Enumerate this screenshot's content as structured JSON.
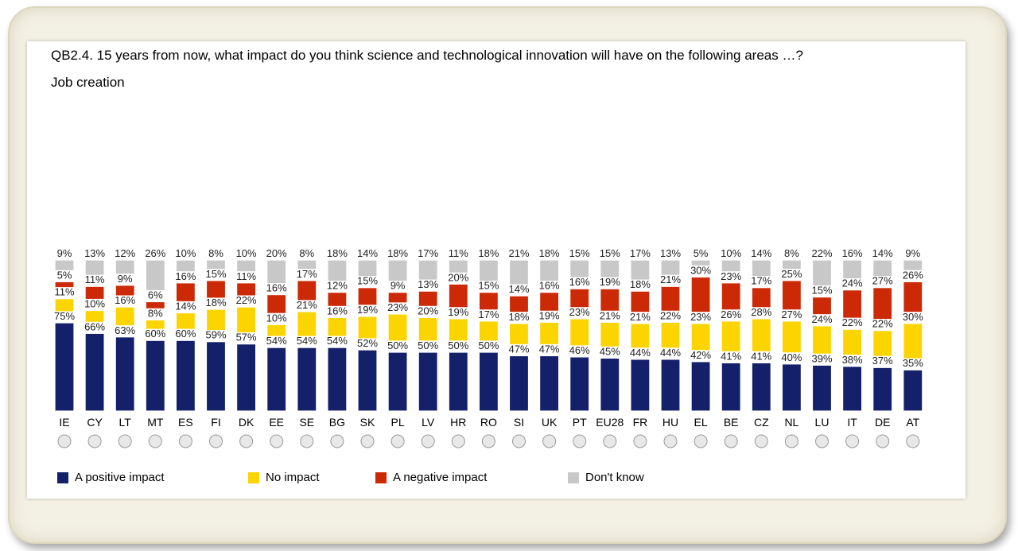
{
  "question": "QB2.4. 15 years from now, what impact do you think science and technological innovation will have on the following areas …?",
  "subtitle": "Job creation",
  "colors": {
    "positive": "#142069",
    "none": "#fcd400",
    "negative": "#cc2a06",
    "dont_know": "#c8c8c8"
  },
  "legend": [
    {
      "key": "positive",
      "label": "A positive impact",
      "color": "#142069"
    },
    {
      "key": "none",
      "label": "No impact",
      "color": "#fcd400"
    },
    {
      "key": "negative",
      "label": "A negative impact",
      "color": "#cc2a06"
    },
    {
      "key": "dont_know",
      "label": "Don't know",
      "color": "#c8c8c8"
    }
  ],
  "chart_data": {
    "type": "bar",
    "stacked": true,
    "percent_suffix": "%",
    "categories": [
      "IE",
      "CY",
      "LT",
      "MT",
      "ES",
      "FI",
      "DK",
      "EE",
      "SE",
      "BG",
      "SK",
      "PL",
      "LV",
      "HR",
      "RO",
      "SI",
      "UK",
      "PT",
      "EU28",
      "FR",
      "HU",
      "EL",
      "BE",
      "CZ",
      "NL",
      "LU",
      "IT",
      "DE",
      "AT"
    ],
    "flag_icons": [
      "ireland-flag-icon",
      "cyprus-flag-icon",
      "lithuania-flag-icon",
      "malta-flag-icon",
      "spain-flag-icon",
      "finland-flag-icon",
      "denmark-flag-icon",
      "estonia-flag-icon",
      "sweden-flag-icon",
      "bulgaria-flag-icon",
      "slovakia-flag-icon",
      "poland-flag-icon",
      "latvia-flag-icon",
      "croatia-flag-icon",
      "romania-flag-icon",
      "slovenia-flag-icon",
      "uk-flag-icon",
      "portugal-flag-icon",
      "eu-flag-icon",
      "france-flag-icon",
      "hungary-flag-icon",
      "greece-flag-icon",
      "belgium-flag-icon",
      "czechia-flag-icon",
      "netherlands-flag-icon",
      "luxembourg-flag-icon",
      "italy-flag-icon",
      "germany-flag-icon",
      "austria-flag-icon"
    ],
    "series": [
      {
        "name": "A positive impact",
        "key": "positive",
        "values": [
          75,
          66,
          63,
          60,
          60,
          59,
          57,
          54,
          54,
          54,
          52,
          50,
          50,
          50,
          50,
          47,
          47,
          46,
          45,
          44,
          44,
          42,
          41,
          41,
          40,
          39,
          38,
          37,
          35
        ]
      },
      {
        "name": "No impact",
        "key": "none",
        "values": [
          11,
          10,
          16,
          8,
          14,
          18,
          22,
          10,
          21,
          16,
          19,
          23,
          20,
          19,
          17,
          18,
          19,
          23,
          21,
          21,
          22,
          23,
          26,
          28,
          27,
          24,
          22,
          22,
          30
        ]
      },
      {
        "name": "A negative impact",
        "key": "negative",
        "values": [
          5,
          11,
          9,
          6,
          16,
          15,
          11,
          16,
          17,
          12,
          15,
          9,
          13,
          20,
          15,
          14,
          16,
          16,
          19,
          18,
          21,
          30,
          23,
          17,
          25,
          15,
          24,
          27,
          26
        ]
      },
      {
        "name": "Don't know",
        "key": "dont_know",
        "values": [
          9,
          13,
          12,
          26,
          10,
          8,
          10,
          20,
          8,
          18,
          14,
          18,
          17,
          11,
          18,
          21,
          18,
          15,
          15,
          17,
          13,
          5,
          10,
          14,
          8,
          22,
          16,
          14,
          9
        ]
      }
    ],
    "ylim": [
      0,
      100
    ],
    "grid": false,
    "legend_position": "bottom"
  }
}
